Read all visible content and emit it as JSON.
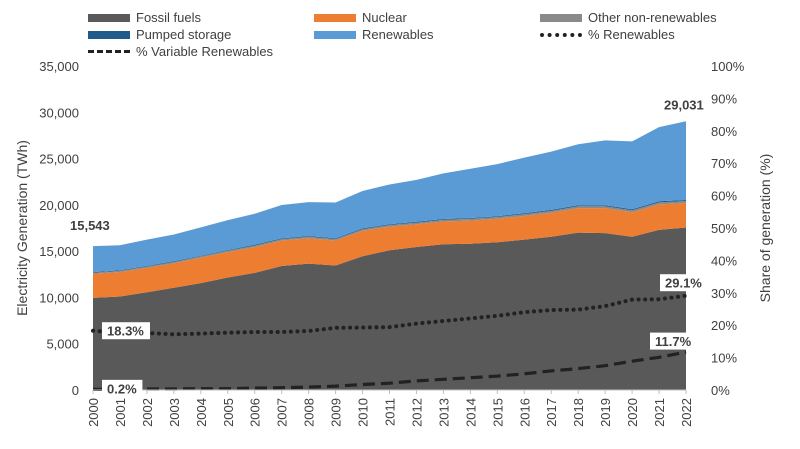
{
  "chart_data": {
    "type": "area",
    "x": [
      2000,
      2001,
      2002,
      2003,
      2004,
      2005,
      2006,
      2007,
      2008,
      2009,
      2010,
      2011,
      2012,
      2013,
      2014,
      2015,
      2016,
      2017,
      2018,
      2019,
      2020,
      2021,
      2022
    ],
    "x_tick_labels": [
      "2000",
      "2001",
      "2002",
      "2003",
      "2004",
      "2005",
      "2006",
      "2007",
      "2008",
      "2009",
      "2010",
      "2011",
      "2012",
      "2013",
      "2014",
      "2015",
      "2016",
      "2017",
      "2018",
      "2019",
      "2020",
      "2021",
      "2022"
    ],
    "stacked_series": [
      {
        "name": "Fossil fuels",
        "color": "#595959",
        "values": [
          9950,
          10100,
          10550,
          11050,
          11550,
          12150,
          12650,
          13400,
          13650,
          13450,
          14450,
          15100,
          15450,
          15750,
          15800,
          15950,
          16250,
          16550,
          17000,
          16950,
          16550,
          17300,
          17550
        ]
      },
      {
        "name": "Nuclear",
        "color": "#ed7d31",
        "values": [
          2600,
          2650,
          2650,
          2650,
          2750,
          2750,
          2800,
          2750,
          2750,
          2700,
          2750,
          2550,
          2450,
          2450,
          2500,
          2550,
          2550,
          2600,
          2650,
          2700,
          2650,
          2750,
          2650
        ]
      },
      {
        "name": "Other non-renewables",
        "color": "#8a8a8a",
        "values": [
          120,
          120,
          130,
          130,
          140,
          140,
          150,
          150,
          160,
          160,
          170,
          170,
          180,
          180,
          190,
          190,
          200,
          200,
          210,
          210,
          210,
          220,
          220
        ]
      },
      {
        "name": "Pumped storage",
        "color": "#1f5c8b",
        "values": [
          70,
          70,
          70,
          70,
          70,
          70,
          80,
          80,
          80,
          80,
          90,
          90,
          90,
          90,
          90,
          90,
          100,
          100,
          100,
          100,
          110,
          110,
          110
        ]
      },
      {
        "name": "Renewables",
        "color": "#5b9bd5",
        "values": [
          2803,
          2700,
          2850,
          2900,
          3050,
          3240,
          3370,
          3600,
          3660,
          3870,
          4040,
          4290,
          4530,
          4930,
          5320,
          5620,
          6000,
          6300,
          6590,
          7000,
          7330,
          8020,
          8501
        ]
      }
    ],
    "line_series": [
      {
        "name": "% Renewables",
        "style": "dotted",
        "color": "#222222",
        "values": [
          18.3,
          17.6,
          17.6,
          17.2,
          17.4,
          17.7,
          17.9,
          17.9,
          18.2,
          19.2,
          19.3,
          19.4,
          20.5,
          21.3,
          22.1,
          22.9,
          24.0,
          24.7,
          24.8,
          25.9,
          27.9,
          28.0,
          29.1
        ]
      },
      {
        "name": "% Variable Renewables",
        "style": "dashed",
        "color": "#222222",
        "values": [
          0.2,
          0.2,
          0.3,
          0.3,
          0.4,
          0.4,
          0.6,
          0.7,
          0.9,
          1.2,
          1.7,
          2.1,
          2.8,
          3.3,
          3.8,
          4.3,
          5.0,
          5.9,
          6.6,
          7.5,
          8.9,
          10.1,
          11.7
        ]
      }
    ],
    "ylabel": "Electricity Generation (TWh)",
    "y2label": "Share of generation (%)",
    "ylim": [
      0,
      35000
    ],
    "y2lim": [
      0,
      100
    ],
    "y_ticks": [
      "0",
      "5,000",
      "10,000",
      "15,000",
      "20,000",
      "25,000",
      "30,000",
      "35,000"
    ],
    "y2_ticks": [
      "0%",
      "10%",
      "20%",
      "30%",
      "40%",
      "50%",
      "60%",
      "70%",
      "80%",
      "90%",
      "100%"
    ],
    "annotations": {
      "total_2000": "15,543",
      "total_2022": "29,031",
      "renewables_2000": "18.3%",
      "renewables_2022": "29.1%",
      "variable_2000": "0.2%",
      "variable_2022": "11.7%"
    },
    "legend_position": "top",
    "grid": false
  },
  "legend": {
    "items": [
      {
        "label": "Fossil fuels",
        "kind": "box",
        "color": "#595959"
      },
      {
        "label": "Nuclear",
        "kind": "box",
        "color": "#ed7d31"
      },
      {
        "label": "Other non-renewables",
        "kind": "box",
        "color": "#8a8a8a"
      },
      {
        "label": "Pumped storage",
        "kind": "box",
        "color": "#1f5c8b"
      },
      {
        "label": "Renewables",
        "kind": "box",
        "color": "#5b9bd5"
      },
      {
        "label": "% Renewables",
        "kind": "dotted",
        "color": "#222222"
      },
      {
        "label": "% Variable Renewables",
        "kind": "dashed",
        "color": "#222222"
      }
    ]
  }
}
